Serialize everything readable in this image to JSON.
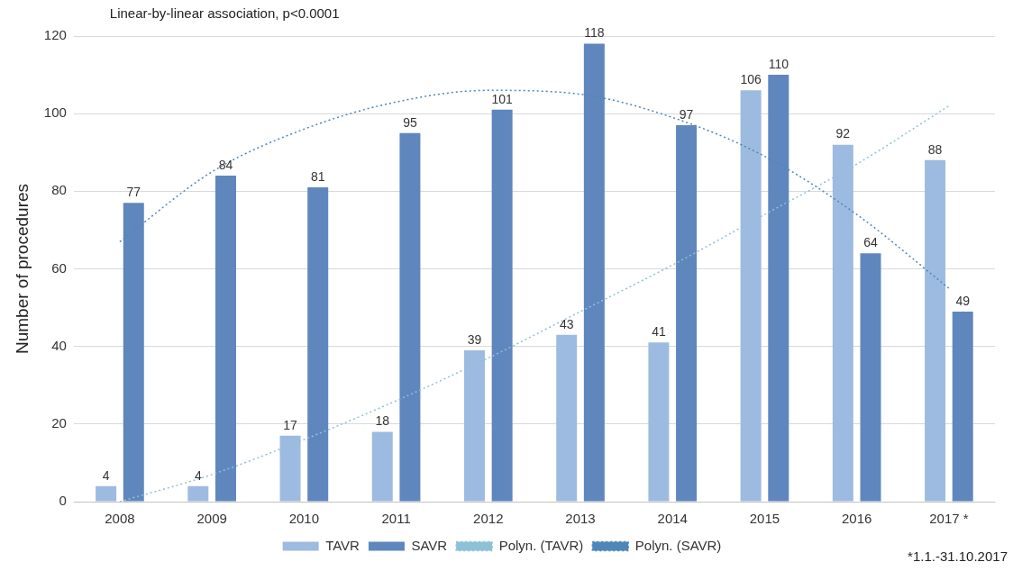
{
  "chart_data": {
    "type": "bar",
    "ylabel": "Number of procedures",
    "categories": [
      "2008",
      "2009",
      "2010",
      "2011",
      "2012",
      "2013",
      "2014",
      "2015",
      "2016",
      "2017 *"
    ],
    "series": [
      {
        "name": "TAVR",
        "color": "#9dbbe0",
        "values": [
          4,
          4,
          17,
          18,
          39,
          43,
          41,
          106,
          92,
          88
        ],
        "value_labels": [
          "4",
          "4",
          "17",
          "18",
          "39",
          "43",
          "41",
          "106",
          "92",
          "88"
        ]
      },
      {
        "name": "SAVR",
        "color": "#5f87bd",
        "values": [
          77,
          84,
          81,
          95,
          101,
          118,
          97,
          110,
          64,
          49
        ],
        "value_labels": [
          "77",
          "84",
          "81",
          "95",
          "101",
          "118",
          "97",
          "110",
          "64",
          "49"
        ]
      },
      {
        "name": "Polyn. (TAVR)",
        "type": "line",
        "color": "#8fc1d6",
        "line_style": "dotted",
        "values": [
          0,
          7,
          16,
          26,
          37,
          49,
          61,
          74,
          87,
          102
        ]
      },
      {
        "name": "Polyn. (SAVR)",
        "type": "line",
        "color": "#4f86b8",
        "line_style": "dotted",
        "values": [
          67,
          85,
          96,
          103,
          106,
          105,
          99,
          89,
          74,
          55
        ]
      }
    ],
    "ylim": [
      0,
      120
    ],
    "yticks": [
      0,
      20,
      40,
      60,
      80,
      100,
      120
    ],
    "grid": "y",
    "legend": "bottom",
    "marker": "none",
    "annotations": [
      "Linear-by-linear association, p<0.0001",
      "*1.1.-31.10.2017"
    ]
  }
}
